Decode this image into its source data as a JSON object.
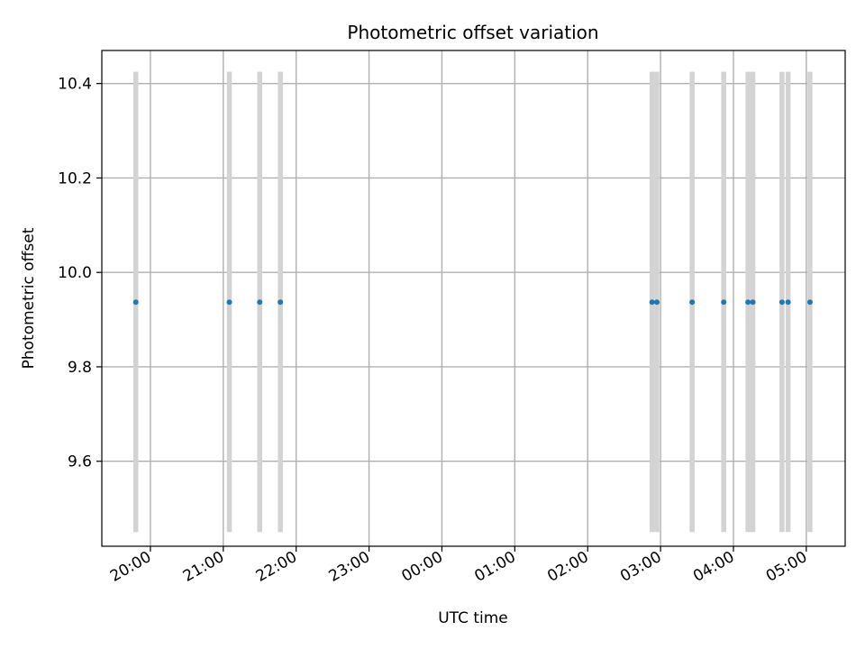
{
  "chart_data": {
    "type": "scatter",
    "title": "Photometric offset variation",
    "xlabel": "UTC time",
    "ylabel": "Photometric offset",
    "xlim": [
      "19:20",
      "05:32"
    ],
    "ylim": [
      9.42,
      10.47
    ],
    "x_ticks": [
      "20:00",
      "21:00",
      "22:00",
      "23:00",
      "00:00",
      "01:00",
      "02:00",
      "03:00",
      "04:00",
      "05:00"
    ],
    "y_ticks": [
      9.6,
      9.8,
      10.0,
      10.2,
      10.4
    ],
    "grid": true,
    "error_bar_range": [
      9.45,
      10.425
    ],
    "points": [
      {
        "x": "19:48",
        "y": 9.937
      },
      {
        "x": "21:05",
        "y": 9.937
      },
      {
        "x": "21:30",
        "y": 9.937
      },
      {
        "x": "21:47",
        "y": 9.937
      },
      {
        "x": "02:53",
        "y": 9.937
      },
      {
        "x": "02:57",
        "y": 9.937
      },
      {
        "x": "03:26",
        "y": 9.937
      },
      {
        "x": "03:52",
        "y": 9.937
      },
      {
        "x": "04:12",
        "y": 9.937
      },
      {
        "x": "04:16",
        "y": 9.937
      },
      {
        "x": "04:40",
        "y": 9.937
      },
      {
        "x": "04:45",
        "y": 9.937
      },
      {
        "x": "05:03",
        "y": 9.937
      }
    ],
    "colors": {
      "points": "#1f77b4",
      "error_bars": "#d3d3d3",
      "grid": "#b0b0b0"
    }
  }
}
